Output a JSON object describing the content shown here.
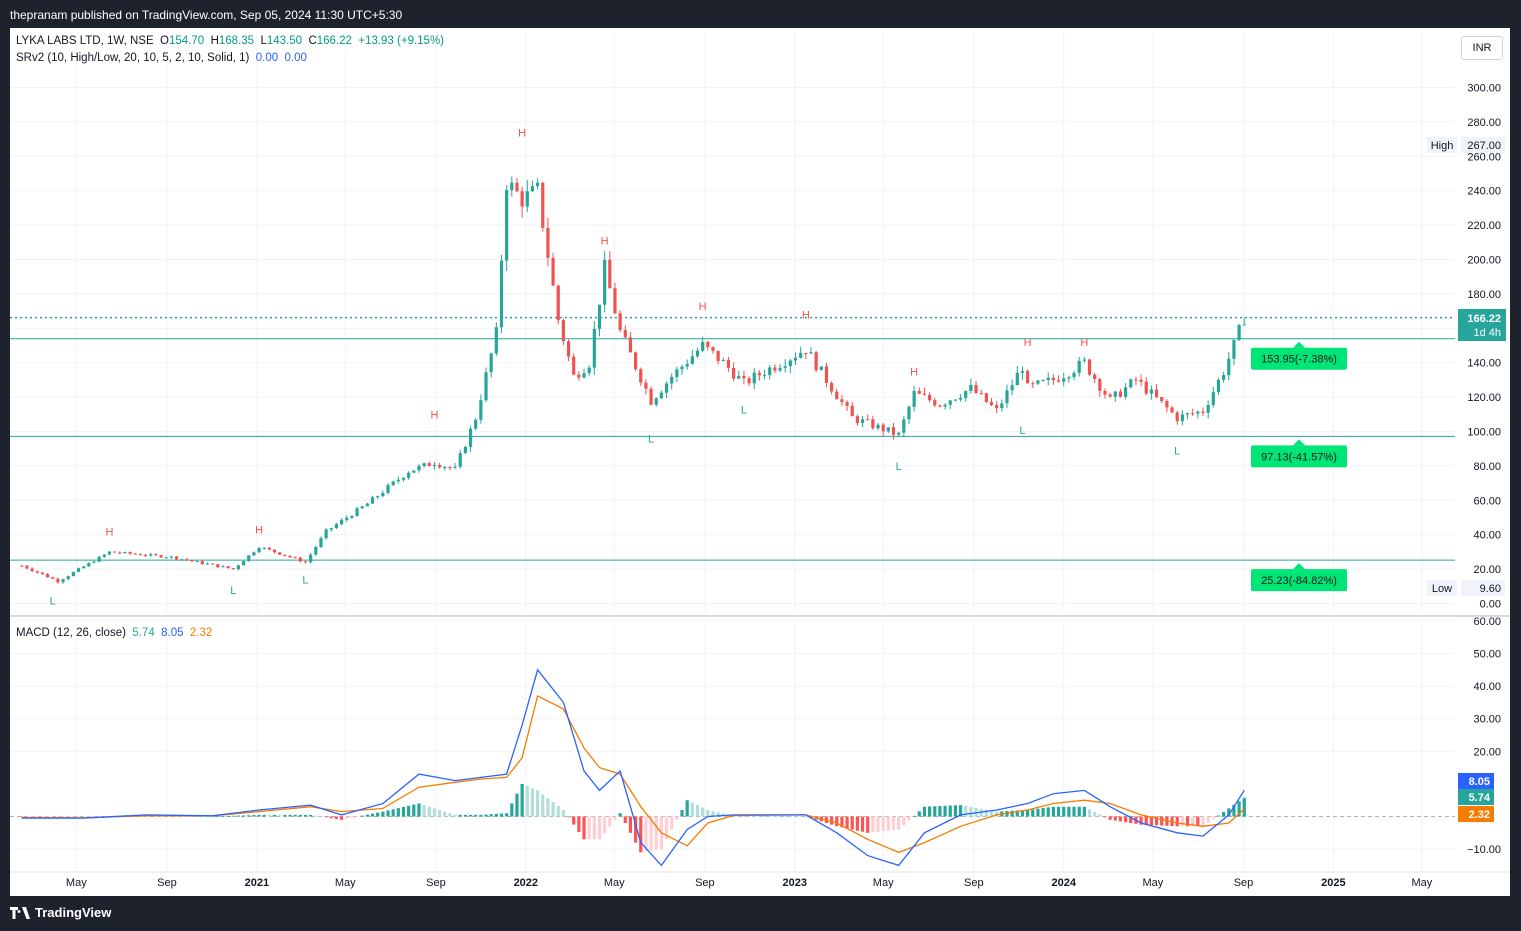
{
  "header": {
    "publisher_line": "thepranam published on TradingView.com, Sep 05, 2024 11:30 UTC+5:30"
  },
  "legend": {
    "symbol": "LYKA LABS LTD, 1W, NSE",
    "open_label": "O",
    "open": "154.70",
    "high_label": "H",
    "high": "168.35",
    "low_label": "L",
    "low": "143.50",
    "close_label": "C",
    "close": "166.22",
    "change": "+13.93 (+9.15%)",
    "indicator": "SRv2 (10, High/Low, 20, 10, 5, 2, 10, Solid, 1)",
    "indicator_v1": "0.00",
    "indicator_v2": "0.00",
    "macd": "MACD (12, 26, close)",
    "macd_hist": "5.74",
    "macd_line": "8.05",
    "macd_signal": "2.32"
  },
  "currency": "INR",
  "footer": {
    "brand": "TradingView"
  },
  "colors": {
    "up": "#26a69a",
    "down": "#ef5350",
    "macd": "#2962ff",
    "signal": "#f57c00",
    "level": "#26a69a",
    "badge": "#00e676"
  },
  "chart_data": [
    {
      "type": "candlestick",
      "symbol": "LYKA LABS LTD",
      "timeframe": "1W",
      "exchange": "NSE",
      "x_ticks": [
        "May",
        "Sep",
        "2021",
        "May",
        "Sep",
        "2022",
        "May",
        "Sep",
        "2023",
        "May",
        "Sep",
        "2024",
        "May",
        "Sep",
        "2025",
        "May"
      ],
      "x_tick_dates": [
        "2020-05-01",
        "2020-09-01",
        "2021-01-01",
        "2021-05-01",
        "2021-09-01",
        "2022-01-01",
        "2022-05-01",
        "2022-09-01",
        "2023-01-01",
        "2023-05-01",
        "2023-09-01",
        "2024-01-01",
        "2024-05-01",
        "2024-09-01",
        "2025-01-01",
        "2025-05-01"
      ],
      "y_ticks": [
        "0.00",
        "20.00",
        "40.00",
        "60.00",
        "80.00",
        "100.00",
        "120.00",
        "140.00",
        "160.00",
        "180.00",
        "200.00",
        "220.00",
        "240.00",
        "260.00",
        "280.00",
        "300.00"
      ],
      "y_tick_values": [
        0,
        20,
        40,
        60,
        80,
        100,
        120,
        140,
        160,
        180,
        200,
        220,
        240,
        260,
        280,
        300
      ],
      "ylim": [
        -2,
        310
      ],
      "high_label": "High",
      "high_value": "267.00",
      "low_label": "Low",
      "low_value": "9.60",
      "last_price": "166.22",
      "countdown": "1d 4h",
      "last_value": 166.22,
      "support_levels": [
        {
          "value": 153.95,
          "label": "153.95(-7.38%)"
        },
        {
          "value": 97.13,
          "label": "97.13(-41.57%)"
        },
        {
          "value": 25.23,
          "label": "25.23(-84.82%)"
        }
      ],
      "pivots": [
        {
          "type": "H",
          "date": "2020-06-15",
          "value": 35
        },
        {
          "type": "L",
          "date": "2020-03-30",
          "value": 10
        },
        {
          "type": "L",
          "date": "2020-11-30",
          "value": 16
        },
        {
          "type": "H",
          "date": "2021-01-04",
          "value": 36
        },
        {
          "type": "L",
          "date": "2021-03-08",
          "value": 22
        },
        {
          "type": "H",
          "date": "2021-08-30",
          "value": 103
        },
        {
          "type": "H",
          "date": "2021-12-27",
          "value": 267
        },
        {
          "type": "H",
          "date": "2022-04-18",
          "value": 204
        },
        {
          "type": "L",
          "date": "2022-06-20",
          "value": 104
        },
        {
          "type": "H",
          "date": "2022-08-29",
          "value": 166
        },
        {
          "type": "L",
          "date": "2022-10-24",
          "value": 121
        },
        {
          "type": "H",
          "date": "2023-01-16",
          "value": 161
        },
        {
          "type": "L",
          "date": "2023-05-22",
          "value": 88
        },
        {
          "type": "H",
          "date": "2023-06-12",
          "value": 128
        },
        {
          "type": "L",
          "date": "2023-11-06",
          "value": 109
        },
        {
          "type": "H",
          "date": "2023-11-13",
          "value": 145
        },
        {
          "type": "H",
          "date": "2024-01-29",
          "value": 145
        },
        {
          "type": "L",
          "date": "2024-06-03",
          "value": 97
        }
      ],
      "anchors_dates": [
        "2020-02-17",
        "2020-04-06",
        "2020-06-15",
        "2020-09-07",
        "2020-11-30",
        "2021-01-04",
        "2021-03-08",
        "2021-04-05",
        "2021-05-31",
        "2021-07-26",
        "2021-08-30",
        "2021-09-27",
        "2021-10-25",
        "2021-11-22",
        "2021-12-06",
        "2021-12-27",
        "2022-01-17",
        "2022-02-14",
        "2022-03-07",
        "2022-03-28",
        "2022-04-18",
        "2022-05-09",
        "2022-06-20",
        "2022-07-18",
        "2022-08-29",
        "2022-09-26",
        "2022-10-24",
        "2022-11-21",
        "2023-01-16",
        "2023-02-13",
        "2023-03-20",
        "2023-05-22",
        "2023-06-12",
        "2023-07-17",
        "2023-08-28",
        "2023-10-02",
        "2023-11-06",
        "2023-11-13",
        "2023-12-18",
        "2024-01-29",
        "2024-03-04",
        "2024-04-08",
        "2024-06-03",
        "2024-07-08",
        "2024-08-05",
        "2024-08-19",
        "2024-09-02"
      ],
      "anchors_close": [
        22,
        13,
        30,
        27,
        20,
        33,
        24,
        42,
        58,
        77,
        82,
        78,
        108,
        157,
        245,
        235,
        240,
        165,
        132,
        140,
        195,
        158,
        118,
        132,
        150,
        140,
        128,
        135,
        148,
        130,
        108,
        98,
        122,
        116,
        125,
        112,
        138,
        125,
        130,
        140,
        118,
        130,
        108,
        112,
        135,
        150,
        166.22
      ]
    },
    {
      "type": "line",
      "name": "MACD (12, 26, close)",
      "ylim": [
        -16,
        60
      ],
      "y_ticks": [
        "−10.00",
        "20.00",
        "30.00",
        "40.00",
        "50.00",
        "60.00"
      ],
      "y_tick_values": [
        -10,
        20,
        30,
        40,
        50,
        60
      ],
      "macd_label": "8.05",
      "hist_label": "5.74",
      "signal_label": "2.32",
      "macd_value": 8.05,
      "hist_value": 5.74,
      "signal_value": 2.32,
      "series_dates": [
        "2020-02-17",
        "2020-05-11",
        "2020-08-03",
        "2020-11-02",
        "2021-01-04",
        "2021-03-15",
        "2021-04-26",
        "2021-06-21",
        "2021-08-09",
        "2021-09-27",
        "2021-11-01",
        "2021-12-06",
        "2021-12-27",
        "2022-01-17",
        "2022-02-21",
        "2022-03-21",
        "2022-04-11",
        "2022-05-09",
        "2022-06-06",
        "2022-07-04",
        "2022-08-08",
        "2022-09-05",
        "2022-10-10",
        "2022-11-21",
        "2023-01-16",
        "2023-02-27",
        "2023-04-10",
        "2023-05-22",
        "2023-06-26",
        "2023-08-14",
        "2023-10-02",
        "2023-11-13",
        "2023-12-18",
        "2024-01-29",
        "2024-03-04",
        "2024-04-15",
        "2024-06-03",
        "2024-07-08",
        "2024-08-12",
        "2024-09-02"
      ],
      "macd": [
        -0.5,
        -0.5,
        0.5,
        0.2,
        2,
        3.5,
        0.5,
        4,
        13,
        11,
        12,
        13,
        28,
        45,
        35,
        14,
        8,
        14,
        -8,
        -15,
        -4,
        0,
        0.5,
        0.5,
        0.5,
        -5,
        -12,
        -15,
        -5,
        0.5,
        2,
        4,
        7,
        8,
        3,
        -2,
        -5,
        -6,
        0.5,
        8.05
      ],
      "signal": [
        -0.3,
        -0.4,
        0.2,
        0.2,
        1.5,
        3,
        1.5,
        2.5,
        9,
        10.5,
        11.5,
        12,
        18,
        37,
        33,
        21,
        15,
        13,
        3,
        -5,
        -9,
        -2,
        0.3,
        0.4,
        0.5,
        -2,
        -7,
        -11,
        -8,
        -3,
        0.5,
        2,
        4,
        5,
        4,
        0.5,
        -2,
        -3,
        -2,
        2.32
      ],
      "histogram_note": "histogram = macd − signal"
    }
  ]
}
